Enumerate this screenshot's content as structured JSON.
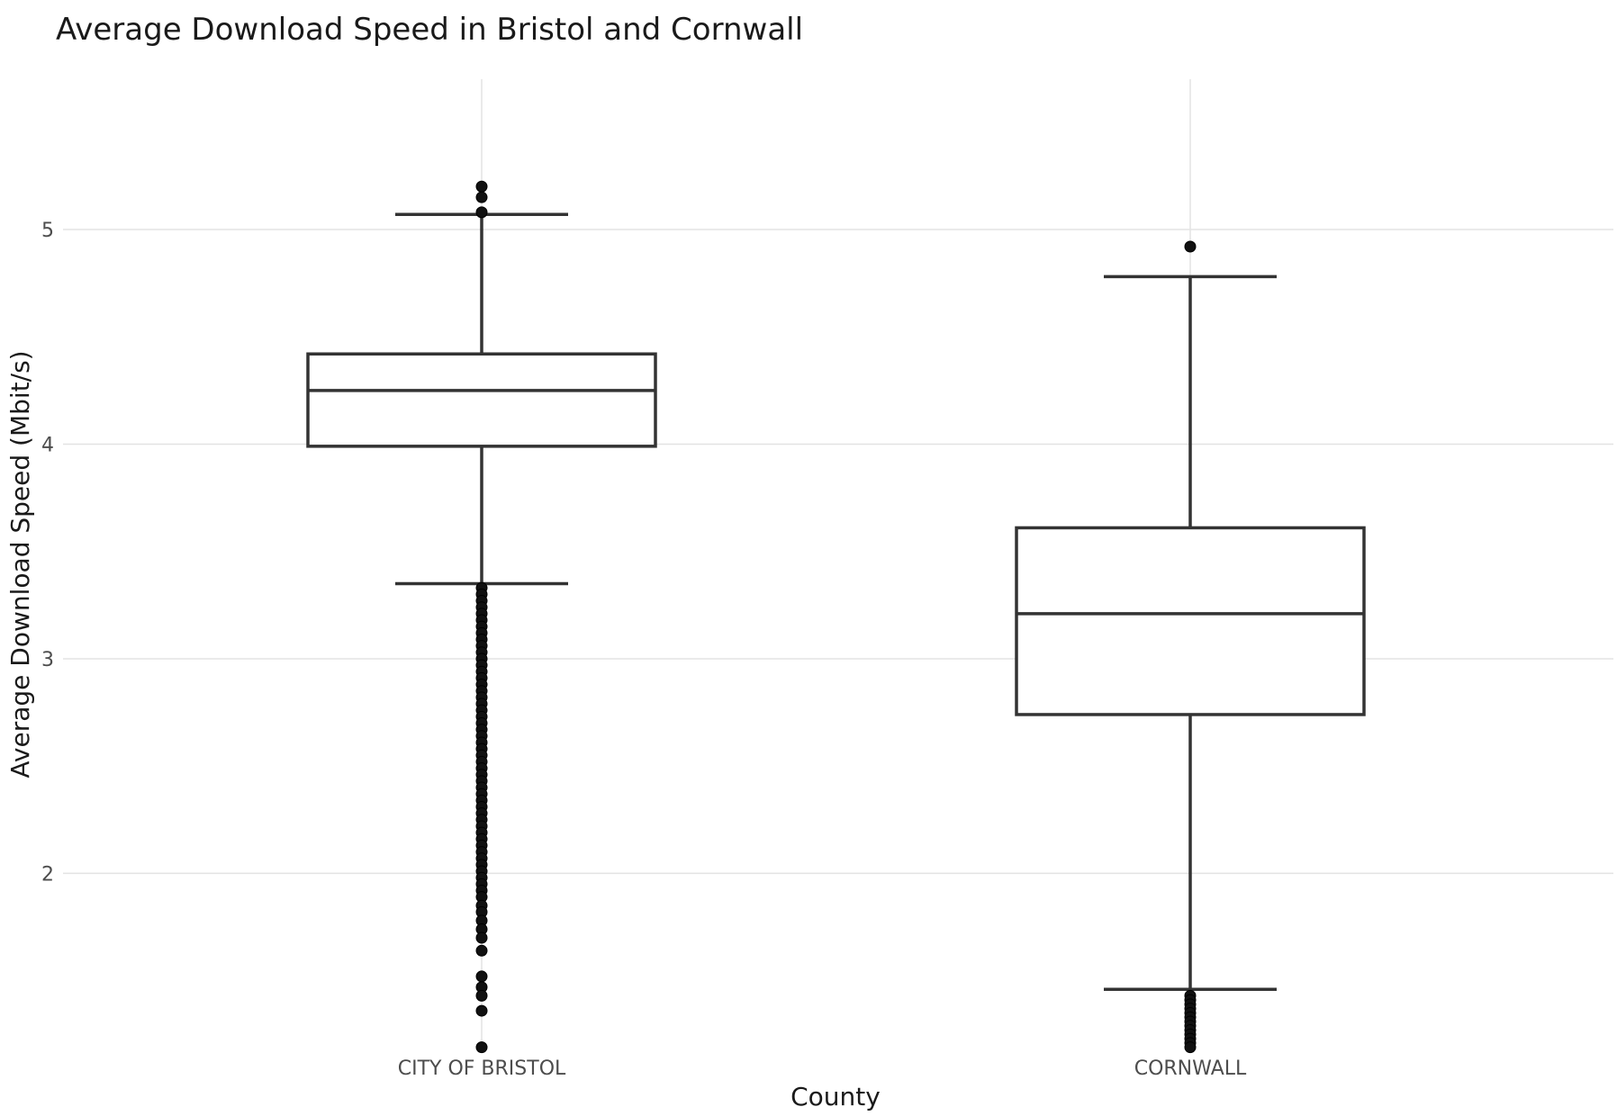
{
  "chart_data": {
    "type": "box",
    "title": "Average Download Speed in Bristol and Cornwall",
    "xlabel": "County",
    "ylabel": "Average Download Speed (Mbit/s)",
    "ylim": [
      1.18,
      5.7
    ],
    "yticks": [
      2,
      3,
      4,
      5
    ],
    "grid": true,
    "categories": [
      "CITY OF BRISTOL",
      "CORNWALL"
    ],
    "series": [
      {
        "category": "CITY OF BRISTOL",
        "whisker_low": 3.35,
        "q1": 3.99,
        "median": 4.25,
        "q3": 4.42,
        "whisker_high": 5.07,
        "outliers_high": [
          5.2,
          5.15,
          5.08
        ],
        "outliers_low": [
          3.33,
          3.3,
          3.27,
          3.24,
          3.21,
          3.18,
          3.15,
          3.12,
          3.09,
          3.06,
          3.03,
          3.0,
          2.97,
          2.94,
          2.91,
          2.88,
          2.85,
          2.82,
          2.79,
          2.76,
          2.73,
          2.7,
          2.67,
          2.64,
          2.61,
          2.58,
          2.55,
          2.52,
          2.49,
          2.46,
          2.43,
          2.4,
          2.37,
          2.34,
          2.31,
          2.28,
          2.25,
          2.22,
          2.19,
          2.16,
          2.13,
          2.1,
          2.07,
          2.04,
          2.01,
          1.98,
          1.95,
          1.92,
          1.89,
          1.85,
          1.82,
          1.78,
          1.74,
          1.7,
          1.64,
          1.52,
          1.47,
          1.43,
          1.36,
          1.19
        ]
      },
      {
        "category": "CORNWALL",
        "whisker_low": 1.46,
        "q1": 2.74,
        "median": 3.21,
        "q3": 3.61,
        "whisker_high": 4.78,
        "outliers_high": [
          4.92
        ],
        "outliers_low": [
          1.43,
          1.41,
          1.39,
          1.37,
          1.35,
          1.33,
          1.31,
          1.29,
          1.27,
          1.25,
          1.23,
          1.21,
          1.19
        ]
      }
    ]
  }
}
